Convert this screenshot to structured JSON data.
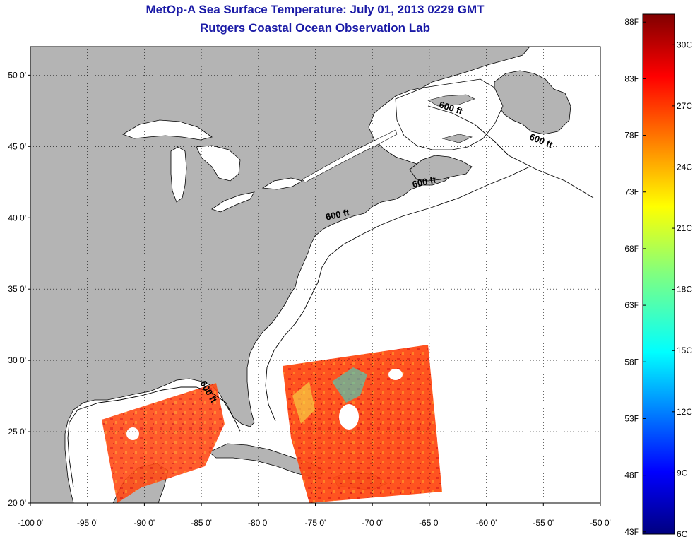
{
  "title": "MetOp-A Sea Surface Temperature:  July 01, 2013 0229 GMT",
  "subtitle": "Rutgers Coastal Ocean Observation Lab",
  "map": {
    "lon_range": [
      -100,
      -50
    ],
    "lat_range": [
      20,
      52
    ],
    "x_ticks": [
      {
        "value": -100,
        "label": "-100 0'"
      },
      {
        "value": -95,
        "label": "-95 0'"
      },
      {
        "value": -90,
        "label": "-90 0'"
      },
      {
        "value": -85,
        "label": "-85 0'"
      },
      {
        "value": -80,
        "label": "-80 0'"
      },
      {
        "value": -75,
        "label": "-75 0'"
      },
      {
        "value": -70,
        "label": "-70 0'"
      },
      {
        "value": -65,
        "label": "-65 0'"
      },
      {
        "value": -60,
        "label": "-60 0'"
      },
      {
        "value": -55,
        "label": "-55 0'"
      },
      {
        "value": -50,
        "label": "-50 0'"
      }
    ],
    "y_ticks": [
      {
        "value": 20,
        "label": "20 0'"
      },
      {
        "value": 25,
        "label": "25 0'"
      },
      {
        "value": 30,
        "label": "30 0'"
      },
      {
        "value": 35,
        "label": "35 0'"
      },
      {
        "value": 40,
        "label": "40 0'"
      },
      {
        "value": 45,
        "label": "45 0'"
      },
      {
        "value": 50,
        "label": "50 0'"
      }
    ],
    "grid": true,
    "land_color": "#b4b4b4",
    "water_color": "#ffffff",
    "isobath_labels": [
      {
        "text": "600 ft",
        "lon": -63.2,
        "lat": 47.5,
        "rot": 18
      },
      {
        "text": "600 ft",
        "lon": -55.3,
        "lat": 45.2,
        "rot": 22
      },
      {
        "text": "600 ft",
        "lon": -65.4,
        "lat": 42.3,
        "rot": -12
      },
      {
        "text": "600 ft",
        "lon": -73.0,
        "lat": 40.0,
        "rot": -12
      },
      {
        "text": "600 ft",
        "lon": -84.6,
        "lat": 27.7,
        "rot": 60
      }
    ]
  },
  "colorbar": {
    "colormap": "jet",
    "f_labels": [
      "88F",
      "83F",
      "78F",
      "73F",
      "68F",
      "63F",
      "58F",
      "53F",
      "48F",
      "43F"
    ],
    "c_labels": [
      "30C",
      "27C",
      "24C",
      "21C",
      "18C",
      "15C",
      "12C",
      "9C",
      "6C"
    ],
    "min_c": 6,
    "max_c": 31.5
  }
}
